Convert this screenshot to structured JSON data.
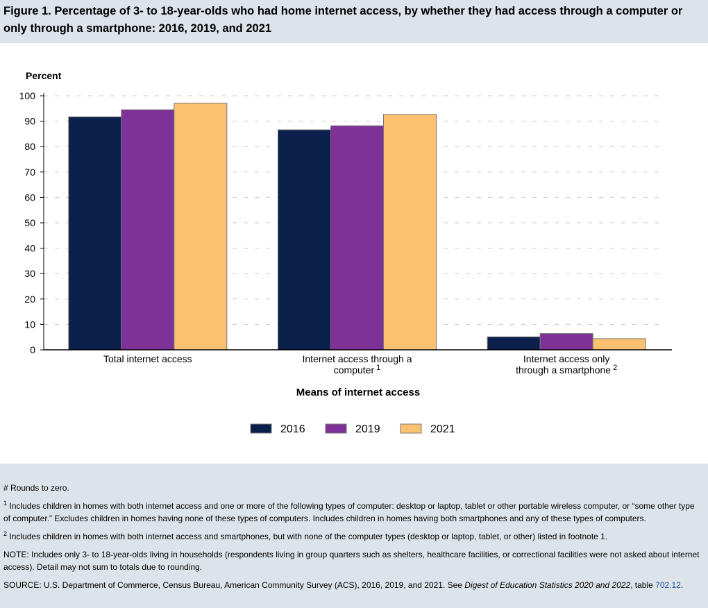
{
  "figure_title": "Figure 1. Percentage of 3- to 18-year-olds who had home internet access, by whether they had access through a computer or only through a smartphone: 2016, 2019, and 2021",
  "colors": {
    "2016": "#0b1f4b",
    "2019": "#7e3197",
    "2021": "#fac170",
    "panel_bg": "#dde3ea"
  },
  "chart_data": {
    "type": "bar",
    "ylabel": "Percent",
    "xlabel": "Means of internet access",
    "ylim": [
      0,
      100
    ],
    "yticks": [
      0,
      10,
      20,
      30,
      40,
      50,
      60,
      70,
      80,
      90,
      100
    ],
    "grid": true,
    "legend_position": "bottom",
    "categories": [
      {
        "label": "Total internet access",
        "footnote": ""
      },
      {
        "label": "Internet access through a computer",
        "footnote": "1"
      },
      {
        "label": "Internet access only through a smartphone",
        "footnote": "2"
      }
    ],
    "series": [
      {
        "name": "2016",
        "color": "#0b1f4b",
        "values": [
          91.7,
          86.6,
          5.1
        ]
      },
      {
        "name": "2019",
        "color": "#7e3197",
        "values": [
          94.5,
          88.2,
          6.4
        ]
      },
      {
        "name": "2021",
        "color": "#fac170",
        "values": [
          97.1,
          92.7,
          4.4
        ]
      }
    ]
  },
  "notes": {
    "rounds": "# Rounds to zero.",
    "fn1_marker": "1",
    "fn1": "Includes children in homes with both internet access and one or more of the following types of computer: desktop or laptop, tablet or other portable wireless computer, or “some other type of computer.” Excludes children in homes having none of these types of computers. Includes children in homes having both smartphones and any of these types of computers.",
    "fn2_marker": "2",
    "fn2": "Includes children in homes with both internet access and smartphones, but with none of the computer types (desktop or laptop, tablet, or other) listed in footnote 1.",
    "note": "NOTE: Includes only 3- to 18-year-olds living in households (respondents living in group quarters such as shelters, healthcare facilities, or correctional facilities were not asked about internet access). Detail may not sum to totals due to rounding.",
    "source_prefix": "SOURCE: U.S. Department of Commerce, Census Bureau, American Community Survey (ACS), 2016, 2019, and 2021. See ",
    "source_italic": "Digest of Education Statistics 2020 and 2022",
    "source_mid": ", table ",
    "source_link": "702.12",
    "source_end": "."
  }
}
